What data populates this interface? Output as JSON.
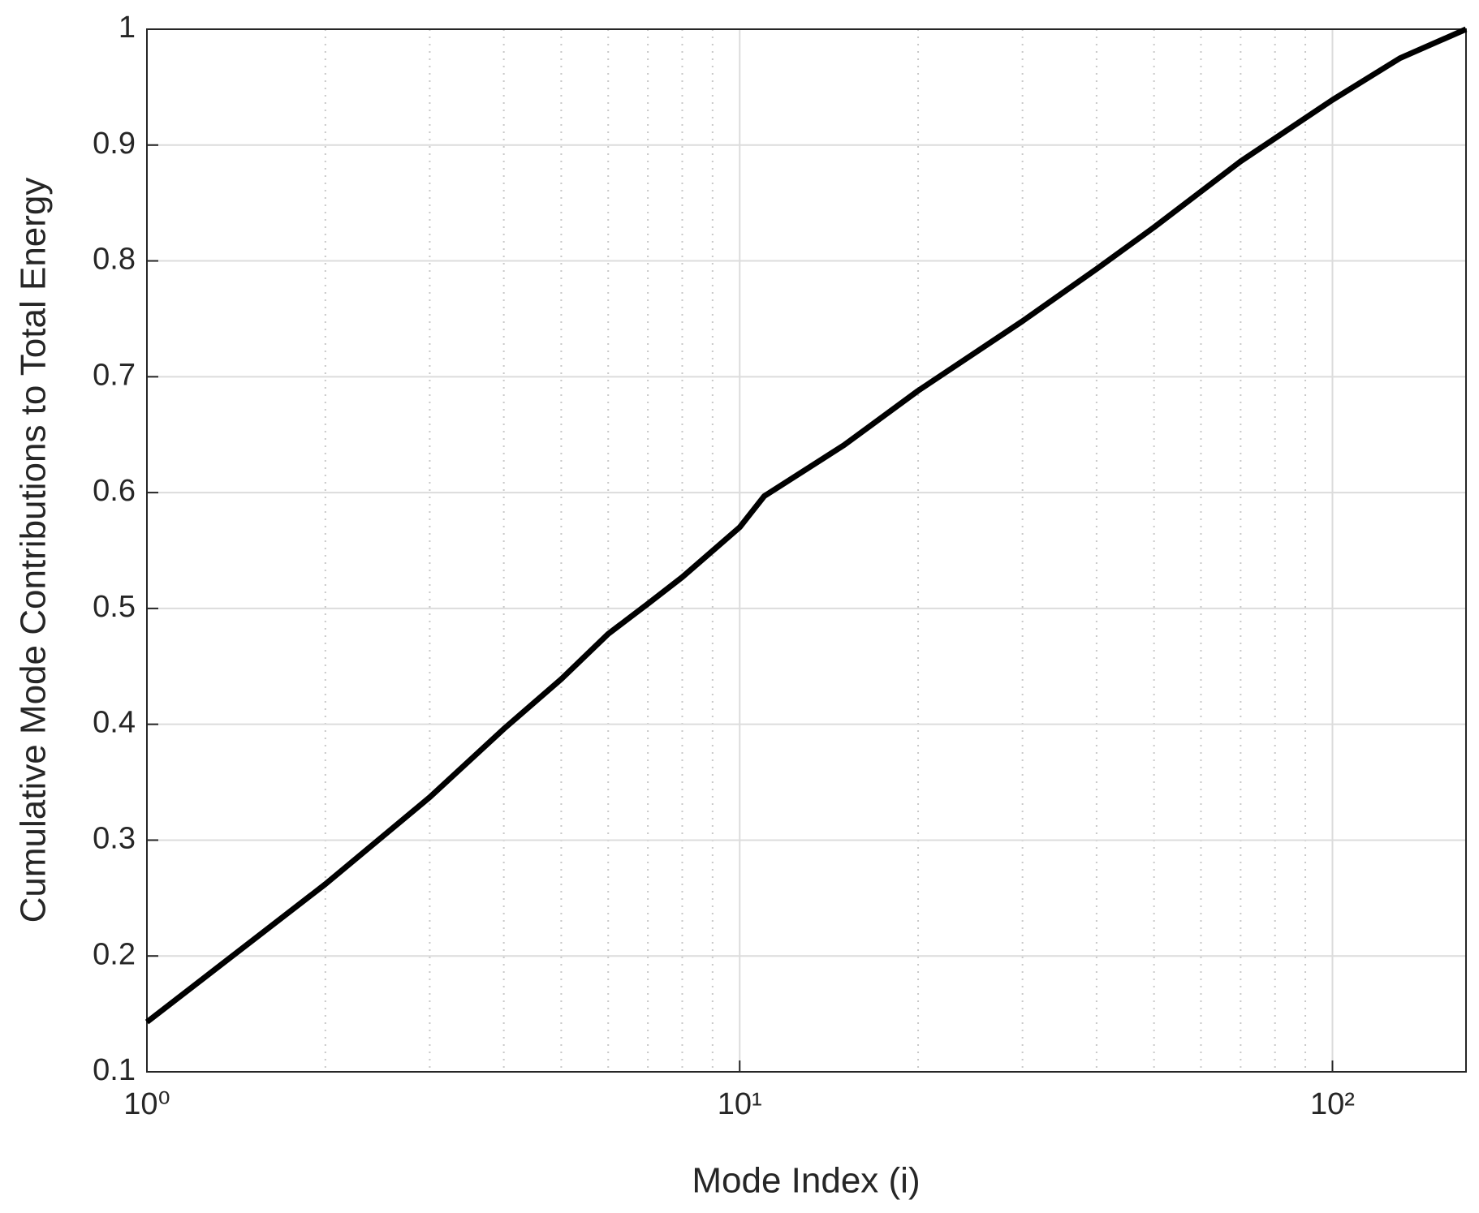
{
  "chart_data": {
    "type": "line",
    "x_label": "Mode Index (i)",
    "y_label": "Cumulative Mode Contributions to Total Energy",
    "x": [
      1,
      2,
      3,
      4,
      5,
      6,
      7,
      8,
      10,
      11,
      15,
      20,
      30,
      40,
      50,
      70,
      100,
      130,
      168
    ],
    "series": [
      {
        "color": "#000000",
        "values": [
          0.143,
          0.262,
          0.337,
          0.396,
          0.439,
          0.478,
          0.504,
          0.527,
          0.57,
          0.597,
          0.641,
          0.688,
          0.748,
          0.793,
          0.829,
          0.886,
          0.939,
          0.975,
          1.0
        ]
      }
    ],
    "xscale": "log",
    "xlim": [
      1,
      168
    ],
    "ylim": [
      0.1,
      1
    ],
    "xticks": [
      {
        "value": 1,
        "label": "10⁰"
      },
      {
        "value": 10,
        "label": "10¹"
      },
      {
        "value": 100,
        "label": "10²"
      }
    ],
    "xminorticks": [
      2,
      3,
      4,
      5,
      6,
      7,
      8,
      9,
      20,
      30,
      40,
      50,
      60,
      70,
      80,
      90
    ],
    "yticks": [
      0.1,
      0.2,
      0.3,
      0.4,
      0.5,
      0.6,
      0.7,
      0.8,
      0.9,
      1
    ],
    "grid": true
  }
}
